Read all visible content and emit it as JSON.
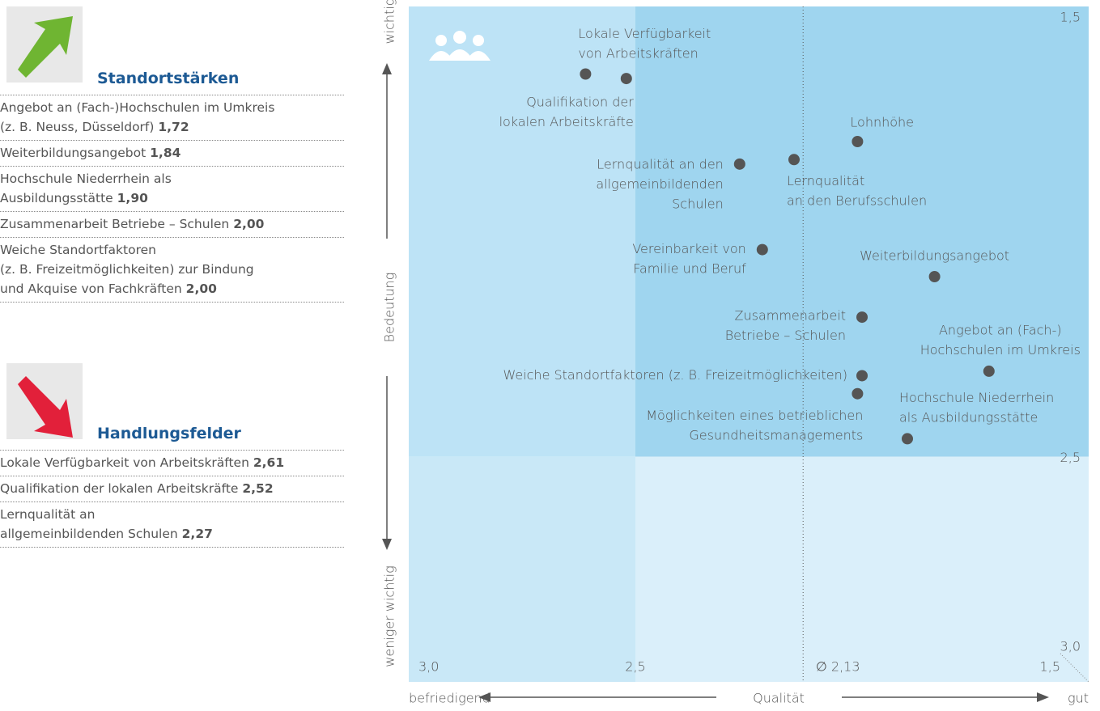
{
  "sections": [
    {
      "title": "Standortstärken",
      "items": [
        {
          "lines": [
            "Angebot an (Fach-)Hochschulen im Umkreis",
            "(z. B. Neuss, Düsseldorf)"
          ],
          "value": "1,72"
        },
        {
          "lines": [
            "Weiterbildungsangebot"
          ],
          "value": "1,84"
        },
        {
          "lines": [
            "Hochschule Niederrhein als",
            "Ausbildungsstätte"
          ],
          "value": "1,90"
        },
        {
          "lines": [
            "Zusammenarbeit Betriebe – Schulen"
          ],
          "value": "2,00"
        },
        {
          "lines": [
            "Weiche Standortfaktoren",
            "(z. B. Freizeitmöglichkeiten) zur Bindung",
            "und Akquise von Fachkräften"
          ],
          "value": "2,00"
        }
      ]
    },
    {
      "title": "Handlungsfelder",
      "items": [
        {
          "lines": [
            "Lokale Verfügbarkeit von Arbeitskräften"
          ],
          "value": "2,61"
        },
        {
          "lines": [
            "Qualifikation der lokalen Arbeitskräfte"
          ],
          "value": "2,52"
        },
        {
          "lines": [
            "Lernqualität an",
            "allgemeinbildenden Schulen"
          ],
          "value": "2,27"
        }
      ]
    }
  ],
  "chart_data": {
    "type": "scatter",
    "y_label": "Bedeutung",
    "y_top_label": "wichtig",
    "y_bottom_label": "weniger wichtig",
    "x_label": "Qualität",
    "x_left_label": "befriedigend",
    "x_right_label": "gut",
    "xlim": [
      3.0,
      1.5
    ],
    "ylim": [
      1.5,
      3.0
    ],
    "xticks": [
      {
        "value": 3.0,
        "label": "3,0"
      },
      {
        "value": 2.5,
        "label": "2,5"
      },
      {
        "value": 2.13,
        "label": "∅ 2,13"
      },
      {
        "value": 1.5,
        "label": "1,5"
      }
    ],
    "yticks": [
      {
        "value": 1.5,
        "label": "1,5"
      },
      {
        "value": 2.5,
        "label": "2,5"
      },
      {
        "value": 3.0,
        "label": "3,0"
      }
    ],
    "color": "#555555",
    "labels": [
      [
        "Lokale Verfügbarkeit",
        "von Arbeitskräften"
      ],
      [
        "Qualifikation der",
        "lokalen Arbeitskräfte"
      ],
      [
        "Lernqualität an den",
        "allgemeinbildenden",
        "Schulen"
      ],
      [
        "Lernqualität",
        "an den Berufsschulen"
      ],
      [
        "Lohnhöhe"
      ],
      [
        "Vereinbarkeit von",
        "Familie und Beruf"
      ],
      [
        "Weiterbildungsangebot"
      ],
      [
        "Zusammenarbeit",
        "Betriebe – Schulen"
      ],
      [
        "Angebot an (Fach-)",
        "Hochschulen im Umkreis"
      ],
      [
        "Weiche Standortfaktoren (z. B. Freizeitmöglichkeiten)"
      ],
      [
        "Möglichkeiten eines betrieblichen",
        "Gesundheitsmanagements"
      ],
      [
        "Hochschule Niederrhein",
        "als Ausbildungsstätte"
      ]
    ],
    "x": [
      2.61,
      2.52,
      2.27,
      2.15,
      2.01,
      2.22,
      1.84,
      2.0,
      1.72,
      2.0,
      2.01,
      1.9
    ],
    "values": [
      1.65,
      1.66,
      1.85,
      1.84,
      1.8,
      2.04,
      2.1,
      2.19,
      2.31,
      2.32,
      2.36,
      2.46
    ]
  }
}
